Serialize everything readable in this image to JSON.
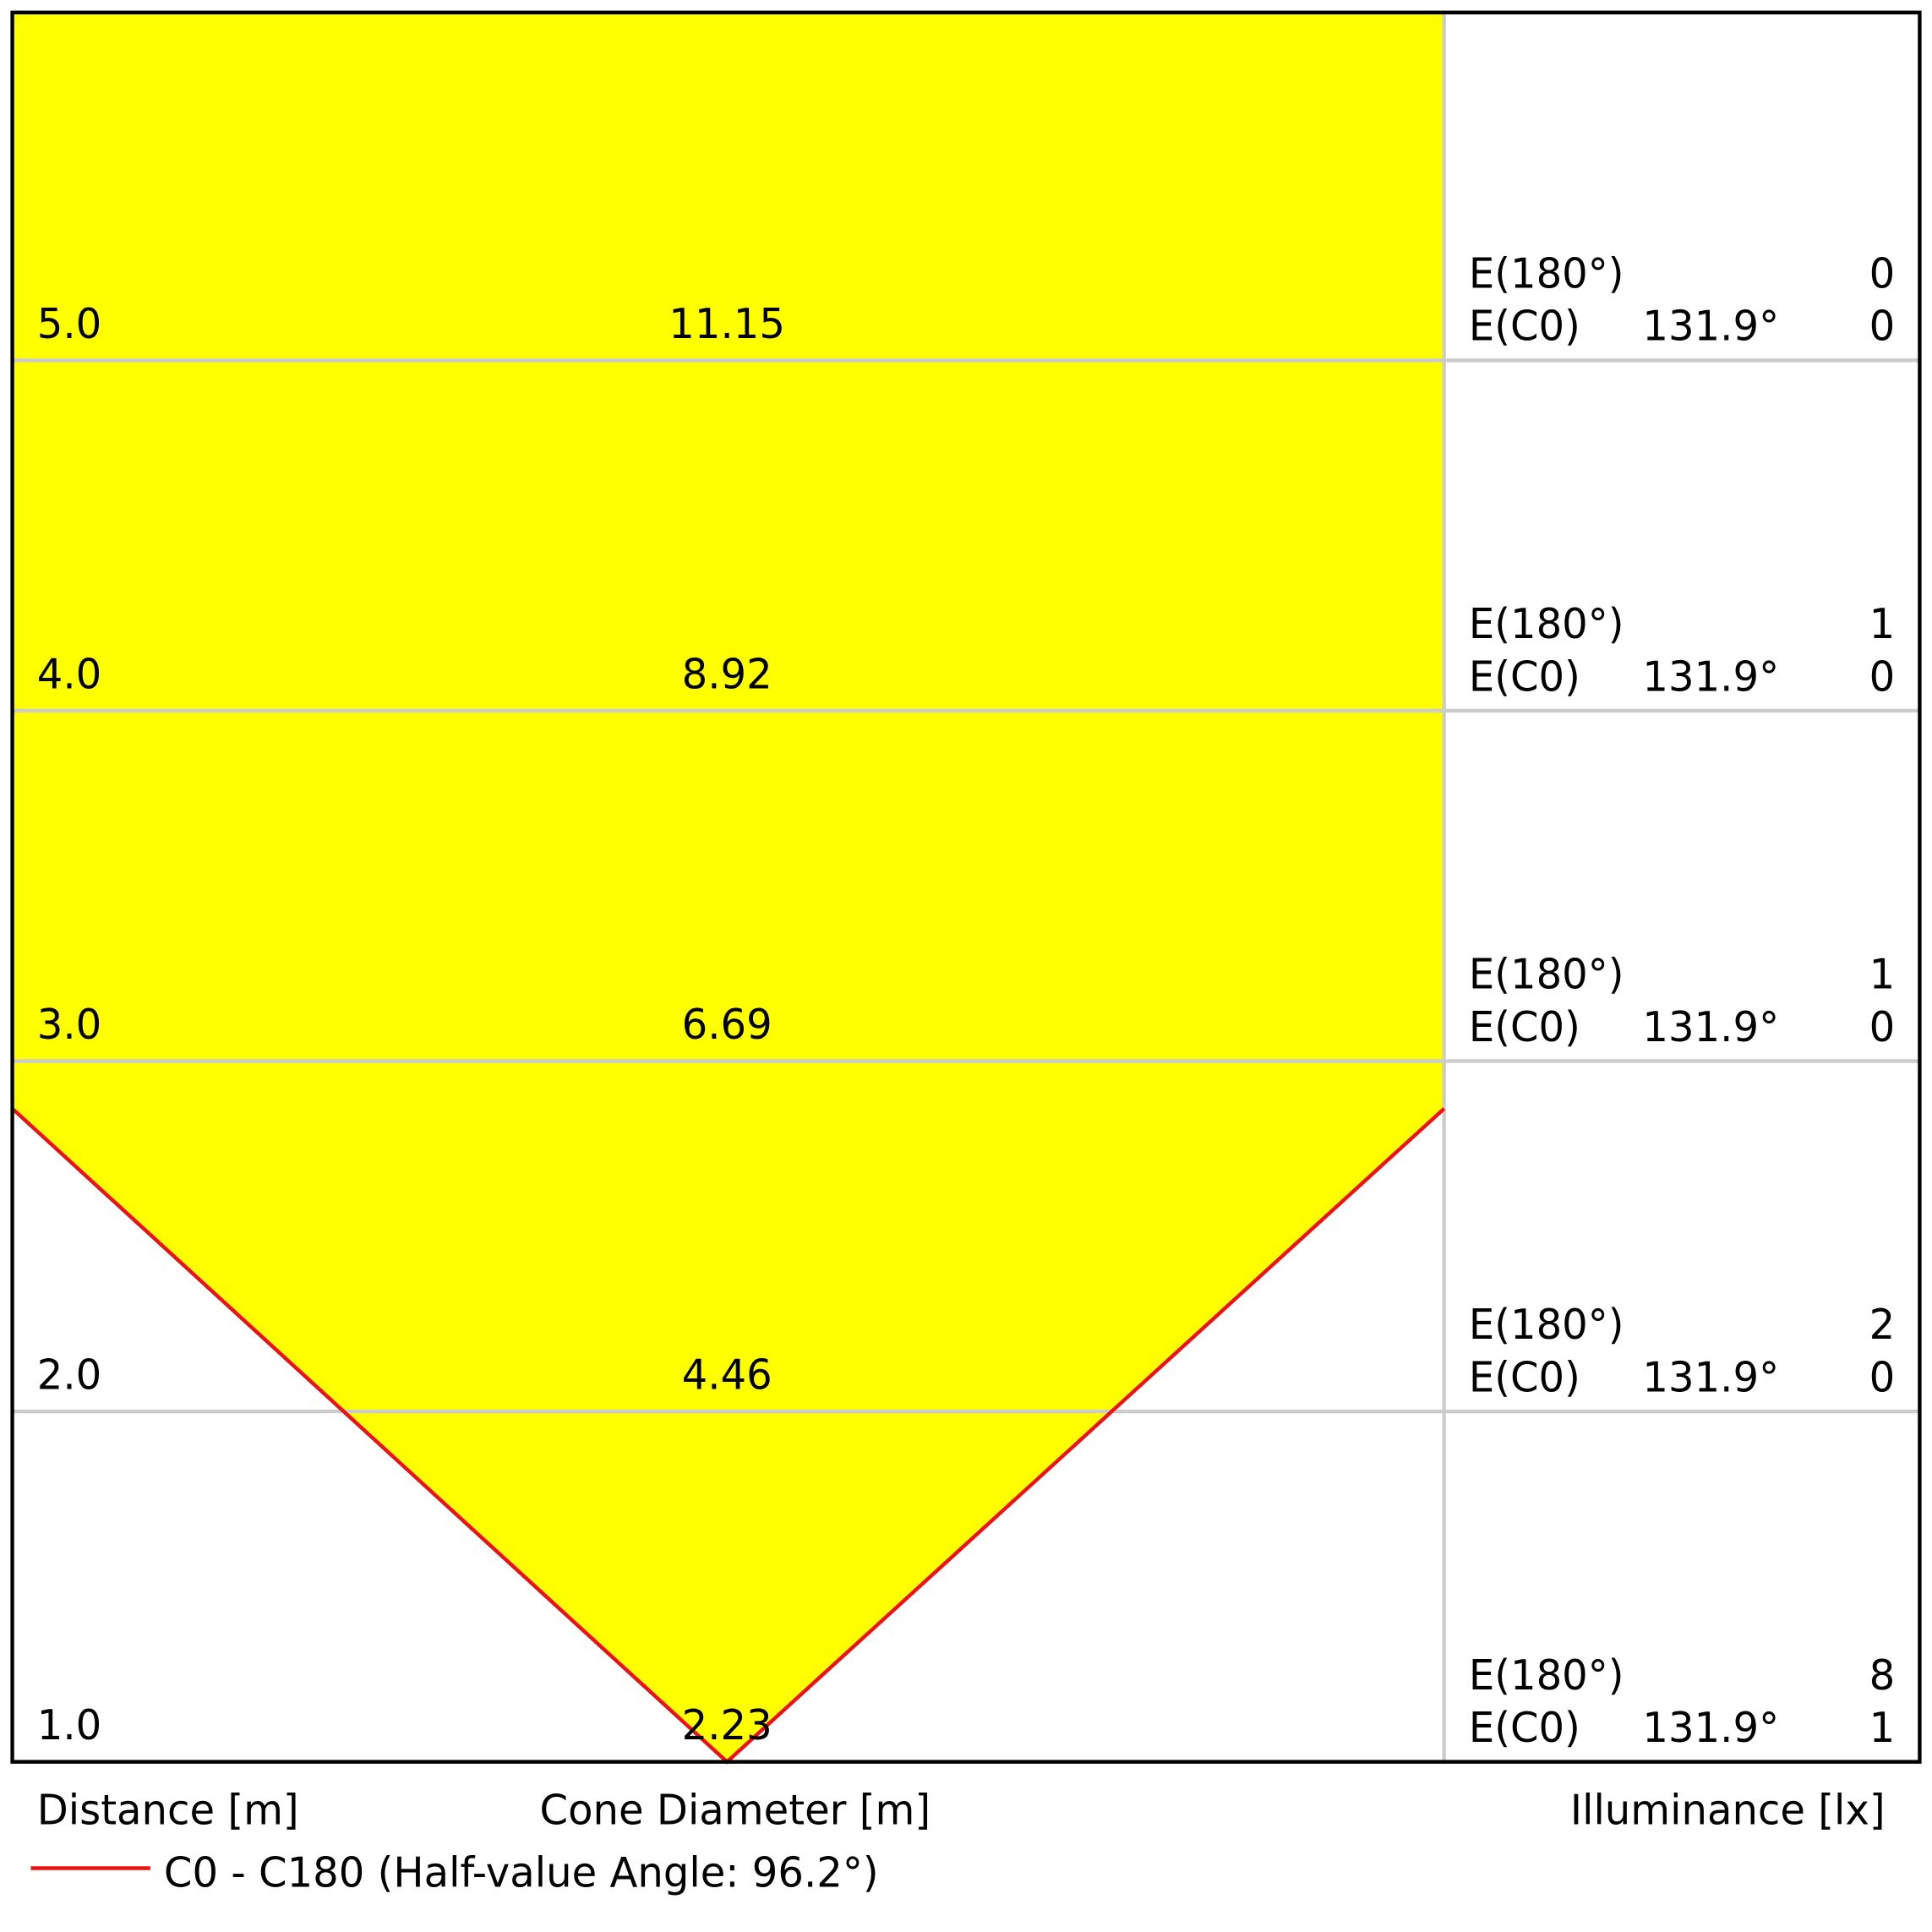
{
  "rows": [
    {
      "distance": "5.0",
      "diameter": "11.15",
      "e180_label": "E(180°)",
      "e180": "0",
      "ec0_label": "E(C0)",
      "angle": "131.9°",
      "ec0": "0"
    },
    {
      "distance": "4.0",
      "diameter": "8.92",
      "e180_label": "E(180°)",
      "e180": "1",
      "ec0_label": "E(C0)",
      "angle": "131.9°",
      "ec0": "0"
    },
    {
      "distance": "3.0",
      "diameter": "6.69",
      "e180_label": "E(180°)",
      "e180": "1",
      "ec0_label": "E(C0)",
      "angle": "131.9°",
      "ec0": "0"
    },
    {
      "distance": "2.0",
      "diameter": "4.46",
      "e180_label": "E(180°)",
      "e180": "2",
      "ec0_label": "E(C0)",
      "angle": "131.9°",
      "ec0": "0"
    },
    {
      "distance": "1.0",
      "diameter": "2.23",
      "e180_label": "E(180°)",
      "e180": "8",
      "ec0_label": "E(C0)",
      "angle": "131.9°",
      "ec0": "1"
    }
  ],
  "footer": {
    "distance_label": "Distance [m]",
    "diameter_label": "Cone Diameter [m]",
    "illuminance_label": "Illuminance [lx]"
  },
  "legend": {
    "label": "C0 - C180 (Half-value Angle: 96.2°)"
  }
}
